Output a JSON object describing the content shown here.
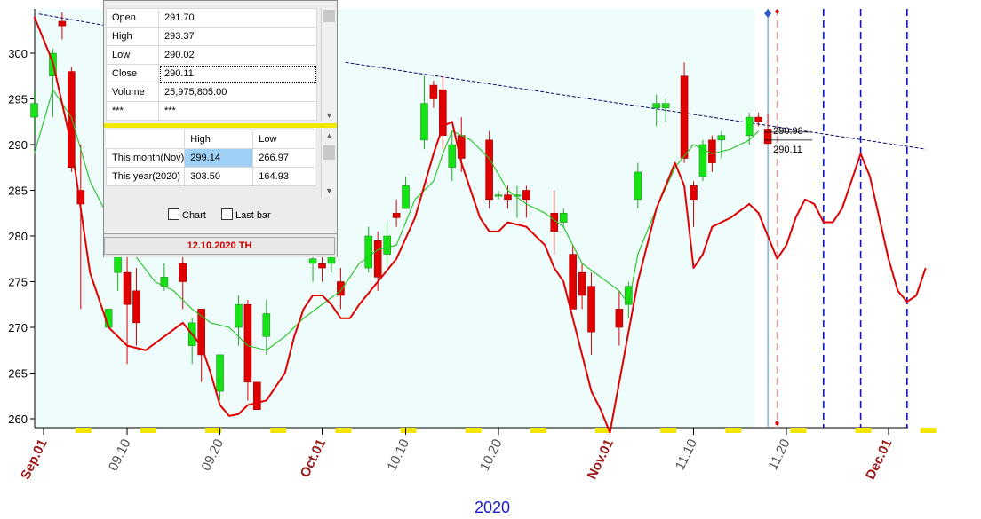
{
  "chart_data": {
    "type": "candlestick",
    "year_label": "2020",
    "y_ticks": [
      260,
      265,
      270,
      275,
      280,
      285,
      290,
      295,
      300
    ],
    "ylim": [
      259,
      305
    ],
    "x_labels": [
      {
        "text": "Sep.01",
        "day": 0,
        "style": "month"
      },
      {
        "text": "09.10",
        "day": 9,
        "style": "day"
      },
      {
        "text": "09.20",
        "day": 19,
        "style": "day"
      },
      {
        "text": "Oct.01",
        "day": 30,
        "style": "month"
      },
      {
        "text": "10.10",
        "day": 39,
        "style": "day"
      },
      {
        "text": "10.20",
        "day": 49,
        "style": "day"
      },
      {
        "text": "Nov.01",
        "day": 61,
        "style": "month"
      },
      {
        "text": "11.10",
        "day": 70,
        "style": "day"
      },
      {
        "text": "11.20",
        "day": 80,
        "style": "day"
      },
      {
        "text": "Dec.01",
        "day": 91,
        "style": "month"
      }
    ],
    "candles": [
      {
        "day": -1,
        "o": 293,
        "h": 296,
        "c": 294.5,
        "l": 291
      },
      {
        "day": 1,
        "o": 297.5,
        "h": 300.5,
        "c": 300,
        "l": 293
      },
      {
        "day": 2,
        "o": 303.5,
        "h": 304.5,
        "c": 303,
        "l": 301.5
      },
      {
        "day": 3,
        "o": 298,
        "h": 298.5,
        "c": 287.5,
        "l": 287
      },
      {
        "day": 4,
        "o": 285,
        "h": 290,
        "c": 283.5,
        "l": 272
      },
      {
        "day": 7,
        "o": 270,
        "h": 272,
        "c": 272,
        "l": 270
      },
      {
        "day": 8,
        "o": 276,
        "h": 279,
        "c": 278,
        "l": 274
      },
      {
        "day": 9,
        "o": 276,
        "h": 281,
        "c": 272.5,
        "l": 266
      },
      {
        "day": 10,
        "o": 274,
        "h": 276.5,
        "c": 270.5,
        "l": 268
      },
      {
        "day": 13,
        "o": 274.5,
        "h": 277,
        "c": 275.5,
        "l": 274
      },
      {
        "day": 15,
        "o": 277,
        "h": 279,
        "c": 275,
        "l": 272
      },
      {
        "day": 16,
        "o": 268,
        "h": 271,
        "c": 270.5,
        "l": 266
      },
      {
        "day": 17,
        "o": 272,
        "h": 272,
        "c": 267,
        "l": 264
      },
      {
        "day": 19,
        "o": 263,
        "h": 267,
        "c": 267,
        "l": 262
      },
      {
        "day": 21,
        "o": 270,
        "h": 273.5,
        "c": 272.5,
        "l": 268
      },
      {
        "day": 22,
        "o": 272.5,
        "h": 273,
        "c": 264,
        "l": 262
      },
      {
        "day": 23,
        "o": 264,
        "h": 264,
        "c": 261,
        "l": 261
      },
      {
        "day": 24,
        "o": 269,
        "h": 273,
        "c": 271.5,
        "l": 267
      },
      {
        "day": 29,
        "o": 277,
        "h": 280,
        "c": 277.5,
        "l": 275
      },
      {
        "day": 30,
        "o": 277,
        "h": 279,
        "c": 276.5,
        "l": 275
      },
      {
        "day": 31,
        "o": 277,
        "h": 281,
        "c": 278,
        "l": 276
      },
      {
        "day": 32,
        "o": 275,
        "h": 276.5,
        "c": 273.5,
        "l": 272
      },
      {
        "day": 35,
        "o": 276.5,
        "h": 281,
        "c": 280,
        "l": 276
      },
      {
        "day": 36,
        "o": 279.5,
        "h": 280.5,
        "c": 275.5,
        "l": 274
      },
      {
        "day": 37,
        "o": 278,
        "h": 281.5,
        "c": 280,
        "l": 277
      },
      {
        "day": 38,
        "o": 282.5,
        "h": 284,
        "c": 282,
        "l": 281
      },
      {
        "day": 39,
        "o": 283,
        "h": 286.5,
        "c": 285.5,
        "l": 283
      },
      {
        "day": 41,
        "o": 290.5,
        "h": 297.5,
        "c": 294.5,
        "l": 289.5
      },
      {
        "day": 42,
        "o": 296.5,
        "h": 297,
        "c": 295,
        "l": 294
      },
      {
        "day": 43,
        "o": 296,
        "h": 297.5,
        "c": 291,
        "l": 289.5
      },
      {
        "day": 44,
        "o": 287.5,
        "h": 291.5,
        "c": 290,
        "l": 286
      },
      {
        "day": 45,
        "o": 291,
        "h": 293,
        "c": 288.5,
        "l": 287
      },
      {
        "day": 48,
        "o": 290.5,
        "h": 291.5,
        "c": 284,
        "l": 283
      },
      {
        "day": 49,
        "o": 284.5,
        "h": 285,
        "c": 284.5,
        "l": 284
      },
      {
        "day": 50,
        "o": 284.5,
        "h": 285.5,
        "c": 284,
        "l": 283
      },
      {
        "day": 51,
        "o": 284.5,
        "h": 285.5,
        "c": 284.5,
        "l": 282
      },
      {
        "day": 52,
        "o": 285,
        "h": 285.5,
        "c": 284,
        "l": 282
      },
      {
        "day": 55,
        "o": 282.5,
        "h": 285,
        "c": 280.5,
        "l": 278
      },
      {
        "day": 56,
        "o": 281.5,
        "h": 283,
        "c": 282.5,
        "l": 281
      },
      {
        "day": 57,
        "o": 278,
        "h": 279,
        "c": 272,
        "l": 272
      },
      {
        "day": 58,
        "o": 276,
        "h": 277,
        "c": 273.5,
        "l": 272
      },
      {
        "day": 59,
        "o": 274.5,
        "h": 276,
        "c": 269.5,
        "l": 267
      },
      {
        "day": 62,
        "o": 272,
        "h": 274,
        "c": 270,
        "l": 268
      },
      {
        "day": 63,
        "o": 272.5,
        "h": 275,
        "c": 274.5,
        "l": 271
      },
      {
        "day": 64,
        "o": 284,
        "h": 288,
        "c": 287,
        "l": 283
      },
      {
        "day": 66,
        "o": 294,
        "h": 295.5,
        "c": 294.5,
        "l": 292
      },
      {
        "day": 67,
        "o": 294,
        "h": 295,
        "c": 294.5,
        "l": 292.5
      },
      {
        "day": 69,
        "o": 297.5,
        "h": 299,
        "c": 288.5,
        "l": 288
      },
      {
        "day": 70,
        "o": 285.5,
        "h": 286,
        "c": 284,
        "l": 281
      },
      {
        "day": 71,
        "o": 286.5,
        "h": 290.5,
        "c": 290,
        "l": 286
      },
      {
        "day": 72,
        "o": 290.5,
        "h": 291,
        "c": 288,
        "l": 287
      },
      {
        "day": 73,
        "o": 290.5,
        "h": 291.5,
        "c": 291,
        "l": 288.5
      },
      {
        "day": 76,
        "o": 291,
        "h": 293.5,
        "c": 293,
        "l": 290
      },
      {
        "day": 77,
        "o": 293,
        "h": 293.5,
        "c": 292.5,
        "l": 292
      },
      {
        "day": 78,
        "o": 291.7,
        "h": 293.37,
        "c": 290.11,
        "l": 290.02
      }
    ],
    "moving_average": {
      "color": "#22c522",
      "points": [
        [
          -1,
          289
        ],
        [
          1,
          296
        ],
        [
          3,
          293
        ],
        [
          5,
          286
        ],
        [
          7,
          282
        ],
        [
          9,
          279
        ],
        [
          12,
          275
        ],
        [
          14,
          274
        ],
        [
          16,
          272
        ],
        [
          18,
          270.5
        ],
        [
          20,
          270
        ],
        [
          22,
          268
        ],
        [
          24,
          267.5
        ],
        [
          26,
          269
        ],
        [
          28,
          271
        ],
        [
          30,
          272.5
        ],
        [
          32,
          274
        ],
        [
          34,
          277
        ],
        [
          36,
          278.5
        ],
        [
          38,
          279
        ],
        [
          40,
          284
        ],
        [
          42,
          286
        ],
        [
          43,
          289
        ],
        [
          44,
          291.5
        ],
        [
          46,
          290.5
        ],
        [
          48,
          288.5
        ],
        [
          50,
          285
        ],
        [
          52,
          283.5
        ],
        [
          54,
          282.5
        ],
        [
          56,
          281
        ],
        [
          58,
          277
        ],
        [
          60,
          275.5
        ],
        [
          62,
          274
        ],
        [
          63,
          272.5
        ],
        [
          64,
          278
        ],
        [
          66,
          283
        ],
        [
          68,
          287.5
        ],
        [
          70,
          290
        ],
        [
          72,
          289
        ],
        [
          74,
          289.5
        ],
        [
          76,
          290.5
        ],
        [
          77,
          291.5
        ]
      ]
    },
    "forecast_line": {
      "color": "#e00000",
      "points": [
        [
          -1,
          304
        ],
        [
          1,
          299
        ],
        [
          3,
          290
        ],
        [
          5,
          276
        ],
        [
          7,
          270
        ],
        [
          9,
          268
        ],
        [
          11,
          267.5
        ],
        [
          13,
          269
        ],
        [
          15,
          270.5
        ],
        [
          17,
          268
        ],
        [
          18,
          265
        ],
        [
          19,
          261.5
        ],
        [
          20,
          260.3
        ],
        [
          21,
          260.5
        ],
        [
          22,
          261.5
        ],
        [
          24,
          262
        ],
        [
          26,
          265
        ],
        [
          27,
          269
        ],
        [
          28,
          272
        ],
        [
          29,
          273.5
        ],
        [
          30,
          273.5
        ],
        [
          31,
          272.5
        ],
        [
          32,
          271
        ],
        [
          33,
          271
        ],
        [
          34,
          272.5
        ],
        [
          36,
          275
        ],
        [
          38,
          277.5
        ],
        [
          40,
          282
        ],
        [
          42,
          289
        ],
        [
          43,
          292
        ],
        [
          44,
          292.5
        ],
        [
          45,
          288
        ],
        [
          47,
          282
        ],
        [
          48,
          280.5
        ],
        [
          49,
          280.5
        ],
        [
          50,
          281.5
        ],
        [
          52,
          281
        ],
        [
          54,
          279
        ],
        [
          55,
          276.5
        ],
        [
          56,
          275
        ],
        [
          57,
          271
        ],
        [
          58,
          267
        ],
        [
          59,
          263
        ],
        [
          60,
          261
        ],
        [
          61,
          258.5
        ],
        [
          62,
          264
        ],
        [
          64,
          275
        ],
        [
          66,
          283
        ],
        [
          68,
          288
        ],
        [
          69,
          285.5
        ],
        [
          70,
          276.5
        ],
        [
          71,
          278
        ],
        [
          72,
          281
        ],
        [
          74,
          282
        ],
        [
          76,
          283.5
        ],
        [
          77,
          282.5
        ],
        [
          78,
          280
        ],
        [
          79,
          277.5
        ],
        [
          80,
          279
        ],
        [
          81,
          282
        ],
        [
          82,
          284
        ],
        [
          83,
          283.5
        ],
        [
          84,
          281.5
        ],
        [
          85,
          281.5
        ],
        [
          86,
          283
        ],
        [
          88,
          289
        ],
        [
          89,
          286.5
        ],
        [
          90,
          282
        ],
        [
          91,
          277.5
        ],
        [
          92,
          274
        ],
        [
          93,
          272.8
        ],
        [
          94,
          273.5
        ],
        [
          95,
          276.5
        ]
      ]
    },
    "trend_lines": [
      {
        "points": [
          [
            -0.5,
            304.3
          ],
          [
            29.5,
            299
          ]
        ],
        "color": "#0a0a70"
      },
      {
        "points": [
          [
            32.5,
            299
          ],
          [
            95,
            289.5
          ]
        ],
        "color": "#0a0a70"
      }
    ],
    "vertical_markers": [
      {
        "day": 78,
        "color": "#3a8fd0",
        "style": "solid"
      },
      {
        "day": 79,
        "color": "#e4a0a0",
        "style": "dashed"
      },
      {
        "day": 84,
        "color": "#1010c8",
        "style": "dashed"
      },
      {
        "day": 88,
        "color": "#1010c8",
        "style": "dashed"
      },
      {
        "day": 93,
        "color": "#1010c8",
        "style": "dashed"
      }
    ],
    "price_labels": [
      "290.98",
      "290.11"
    ]
  },
  "info_panel": {
    "rows": [
      {
        "label": "Open",
        "value": "291.70"
      },
      {
        "label": "High",
        "value": "293.37"
      },
      {
        "label": "Low",
        "value": "290.02"
      },
      {
        "label": "Close",
        "value": "290.11"
      },
      {
        "label": "Volume",
        "value": "25,975,805.00"
      },
      {
        "label": "***",
        "value": "***"
      }
    ],
    "range_header": {
      "high": "High",
      "low": "Low"
    },
    "ranges": [
      {
        "label": "This month(Nov)",
        "high": "299.14",
        "low": "266.97"
      },
      {
        "label": "This year(2020)",
        "high": "303.50",
        "low": "164.93"
      }
    ],
    "chart_checkbox": "Chart",
    "lastbar_checkbox": "Last bar",
    "date": "12.10.2020 TH"
  }
}
